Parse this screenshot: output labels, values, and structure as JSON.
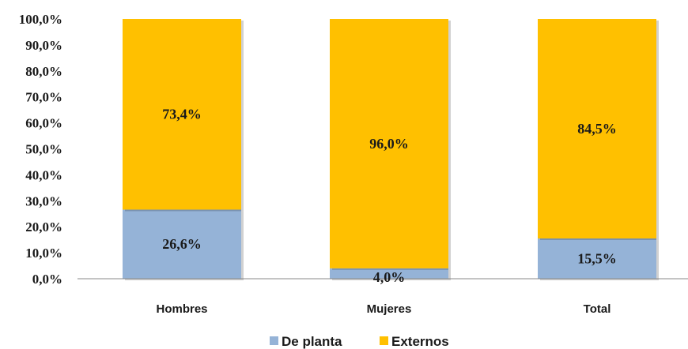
{
  "chart_data": {
    "type": "bar",
    "stacked": true,
    "categories": [
      "Hombres",
      "Mujeres",
      "Total"
    ],
    "series": [
      {
        "name": "De planta",
        "values": [
          26.6,
          4.0,
          15.5
        ],
        "labels": [
          "26,6%",
          "4,0%",
          "15,5%"
        ],
        "color": "#95B3D7"
      },
      {
        "name": "Externos",
        "values": [
          73.4,
          96.0,
          84.5
        ],
        "labels": [
          "73,4%",
          "96,0%",
          "84,5%"
        ],
        "color": "#FFC000"
      }
    ],
    "yticks": [
      "0,0%",
      "10,0%",
      "20,0%",
      "30,0%",
      "40,0%",
      "50,0%",
      "60,0%",
      "70,0%",
      "80,0%",
      "90,0%",
      "100,0%"
    ],
    "ylim": [
      0,
      100
    ],
    "grid": false,
    "legend_position": "bottom",
    "title": "",
    "xlabel": "",
    "ylabel": ""
  }
}
